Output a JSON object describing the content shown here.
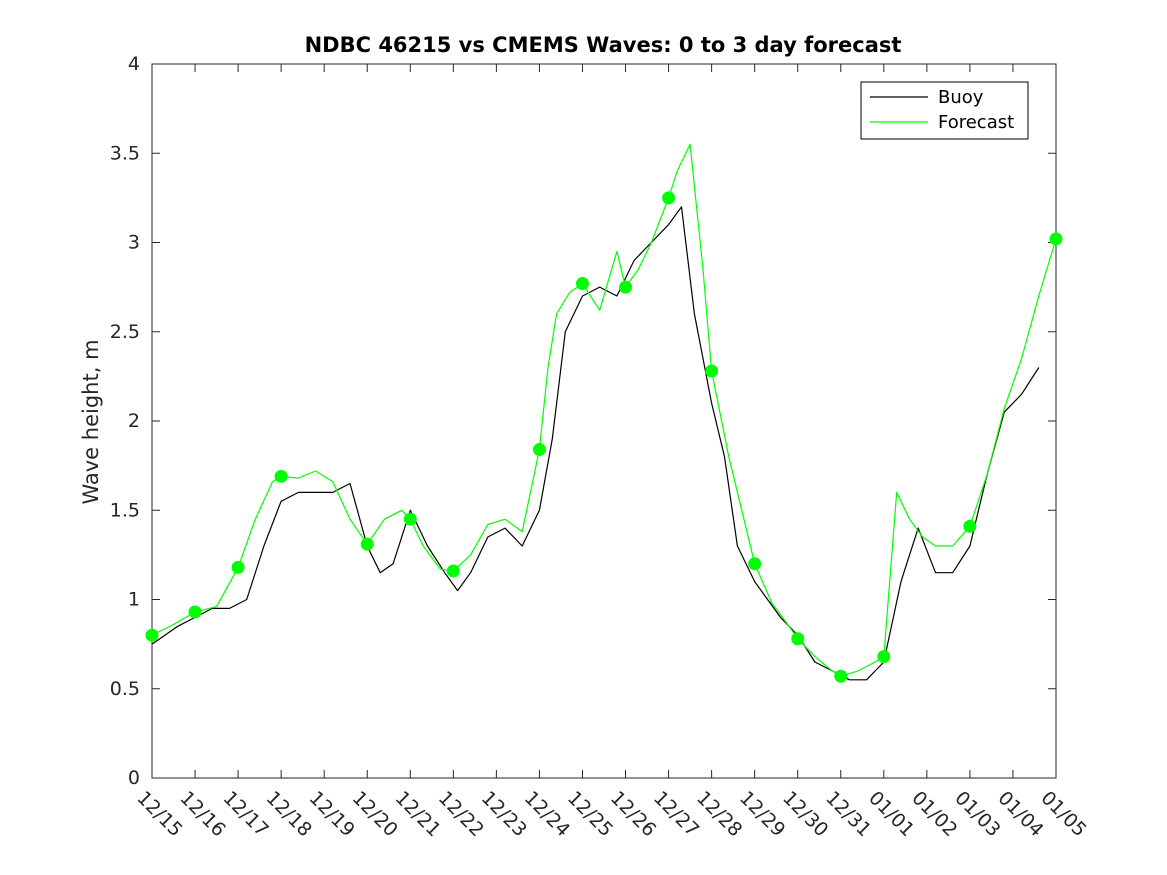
{
  "chart_data": {
    "type": "line",
    "title": "NDBC 46215 vs CMEMS Waves: 0 to 3 day forecast",
    "xlabel": "",
    "ylabel": "Wave height, m",
    "x_ticks": [
      "12/15",
      "12/16",
      "12/17",
      "12/18",
      "12/19",
      "12/20",
      "12/21",
      "12/22",
      "12/23",
      "12/24",
      "12/25",
      "12/26",
      "12/27",
      "12/28",
      "12/29",
      "12/30",
      "12/31",
      "01/01",
      "01/02",
      "01/03",
      "01/04",
      "01/05"
    ],
    "xlim": [
      0,
      21
    ],
    "ylim": [
      0,
      4
    ],
    "y_ticks": [
      "0",
      "0.5",
      "1",
      "1.5",
      "2",
      "2.5",
      "3",
      "3.5",
      "4"
    ],
    "y_tick_values": [
      0,
      0.5,
      1,
      1.5,
      2,
      2.5,
      3,
      3.5,
      4
    ],
    "grid": false,
    "legend": {
      "position": "top-right",
      "entries": [
        "Buoy",
        "Forecast"
      ]
    },
    "colors": {
      "buoy": "#000000",
      "forecast": "#00ff00"
    },
    "series": [
      {
        "name": "Buoy",
        "x": [
          0,
          0.3,
          0.6,
          1.0,
          1.4,
          1.8,
          2.2,
          2.6,
          3.0,
          3.4,
          3.8,
          4.2,
          4.6,
          5.0,
          5.3,
          5.6,
          6.0,
          6.4,
          6.8,
          7.1,
          7.4,
          7.8,
          8.2,
          8.6,
          9.0,
          9.3,
          9.6,
          10.0,
          10.4,
          10.8,
          11.2,
          11.6,
          12.0,
          12.3,
          12.6,
          13.0,
          13.3,
          13.6,
          14.0,
          14.3,
          14.6,
          15.0,
          15.4,
          15.8,
          16.2,
          16.6,
          17.0,
          17.4,
          17.8,
          18.2,
          18.6,
          19.0,
          19.4,
          19.8,
          20.2,
          20.6
        ],
        "y": [
          0.75,
          0.8,
          0.85,
          0.9,
          0.95,
          0.95,
          1.0,
          1.3,
          1.55,
          1.6,
          1.6,
          1.6,
          1.65,
          1.3,
          1.15,
          1.2,
          1.5,
          1.3,
          1.15,
          1.05,
          1.15,
          1.35,
          1.4,
          1.3,
          1.5,
          1.9,
          2.5,
          2.7,
          2.75,
          2.7,
          2.9,
          3.0,
          3.1,
          3.2,
          2.6,
          2.1,
          1.8,
          1.3,
          1.1,
          1.0,
          0.9,
          0.8,
          0.65,
          0.6,
          0.55,
          0.55,
          0.65,
          1.1,
          1.4,
          1.15,
          1.15,
          1.3,
          1.7,
          2.05,
          2.15,
          2.3
        ]
      },
      {
        "name": "Forecast",
        "x": [
          0,
          0.5,
          1.0,
          1.5,
          2.0,
          2.4,
          2.8,
          3.0,
          3.4,
          3.8,
          4.2,
          4.6,
          5.0,
          5.4,
          5.8,
          6.0,
          6.3,
          6.7,
          7.0,
          7.4,
          7.8,
          8.2,
          8.6,
          9.0,
          9.2,
          9.4,
          9.7,
          10.0,
          10.4,
          10.8,
          11.0,
          11.3,
          11.6,
          12.0,
          12.2,
          12.5,
          12.8,
          13.0,
          13.4,
          13.8,
          14.0,
          14.4,
          14.8,
          15.0,
          15.4,
          15.8,
          16.0,
          16.4,
          16.8,
          17.0,
          17.3,
          17.6,
          17.9,
          18.2,
          18.6,
          19.0,
          19.4,
          19.8,
          20.2,
          20.6,
          21.0
        ],
        "y": [
          0.8,
          0.86,
          0.93,
          0.96,
          1.18,
          1.45,
          1.66,
          1.69,
          1.68,
          1.72,
          1.66,
          1.45,
          1.31,
          1.45,
          1.5,
          1.45,
          1.3,
          1.17,
          1.16,
          1.25,
          1.42,
          1.45,
          1.38,
          1.84,
          2.3,
          2.6,
          2.72,
          2.77,
          2.62,
          2.95,
          2.75,
          2.85,
          3.0,
          3.25,
          3.4,
          3.55,
          2.85,
          2.28,
          1.8,
          1.4,
          1.2,
          0.98,
          0.85,
          0.78,
          0.68,
          0.6,
          0.57,
          0.6,
          0.65,
          0.68,
          1.6,
          1.45,
          1.35,
          1.3,
          1.3,
          1.41,
          1.7,
          2.07,
          2.35,
          2.7,
          3.02
        ]
      }
    ]
  }
}
